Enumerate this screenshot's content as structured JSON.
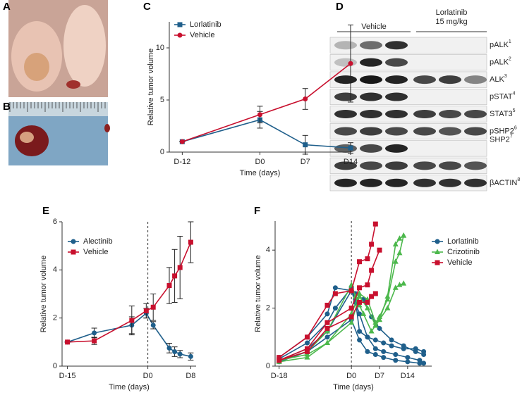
{
  "panel_labels": [
    "A",
    "B",
    "C",
    "D",
    "E",
    "F"
  ],
  "blot": {
    "groups": [
      {
        "lines": [
          "Vehicle"
        ]
      },
      {
        "lines": [
          "Lorlatinib",
          "15 mg/kg"
        ]
      }
    ],
    "rows": [
      {
        "name": "pALK",
        "sup": "1"
      },
      {
        "name": "pALK",
        "sup": "2"
      },
      {
        "name": "ALK",
        "sup": "3"
      },
      {
        "name": "pSTAT",
        "sup": "4"
      },
      {
        "name": "STAT3",
        "sup": "5"
      },
      {
        "name": "pSHP2",
        "sup": "6"
      },
      {
        "name": "SHP2",
        "sup": "7"
      },
      {
        "name": "βACTIN",
        "sup": "8"
      }
    ]
  },
  "chart_data": [
    {
      "type": "line",
      "x_label": "Time (days)",
      "y_label": "Relative tumor volume",
      "x": [
        -12,
        0,
        7,
        14
      ],
      "xlim": [
        -14,
        14
      ],
      "xticks": [
        {
          "value": -12,
          "label": "D-12"
        },
        {
          "value": 0,
          "label": "D0"
        },
        {
          "value": 7,
          "label": "D7"
        },
        {
          "value": 14,
          "label": "D14"
        }
      ],
      "ylim": [
        0,
        12.5
      ],
      "yticks": [
        0,
        5,
        10
      ],
      "series": [
        {
          "name": "Lorlatinib",
          "color": "#1f5f8b",
          "marker": "square",
          "values": [
            1,
            3.1,
            0.7,
            0.4
          ],
          "errors": [
            0,
            0.8,
            0.9,
            0.5
          ]
        },
        {
          "name": "Vehicle",
          "color": "#c8102e",
          "marker": "circle",
          "values": [
            1,
            3.6,
            5.1,
            8.5
          ],
          "errors": [
            0,
            0.8,
            1.0,
            3.7
          ]
        }
      ]
    },
    {
      "type": "line",
      "x_label": "Time (days)",
      "y_label": "Relative tumor volume",
      "x": [
        -15,
        -10,
        -3,
        -0.3,
        1,
        4,
        5,
        6,
        8
      ],
      "xlim": [
        -16,
        9
      ],
      "xticks": [
        {
          "value": -15,
          "label": "D-15"
        },
        {
          "value": 0,
          "label": "D0"
        },
        {
          "value": 8,
          "label": "D8"
        }
      ],
      "ylim": [
        0,
        6
      ],
      "yticks": [
        0,
        2,
        4,
        6
      ],
      "vline": 0,
      "series": [
        {
          "name": "Alectinib",
          "color": "#1f5f8b",
          "marker": "circle",
          "values": [
            1,
            1.38,
            1.7,
            2.2,
            1.7,
            0.75,
            0.6,
            0.5,
            0.4
          ],
          "errors": [
            0,
            0.2,
            0.35,
            0.2,
            0.15,
            0.2,
            0.2,
            0.15,
            0.15
          ]
        },
        {
          "name": "Vehicle",
          "color": "#c8102e",
          "marker": "square",
          "values": [
            1,
            1.05,
            1.9,
            2.3,
            2.45,
            3.35,
            3.75,
            4.1,
            5.15
          ],
          "errors": [
            0,
            0.15,
            0.6,
            0.3,
            0.55,
            0.75,
            1.1,
            1.3,
            0.85
          ]
        }
      ]
    },
    {
      "type": "line",
      "x_label": "Time (days)",
      "y_label": "Relative tumor volume",
      "xlim": [
        -19,
        20
      ],
      "xticks": [
        {
          "value": -18,
          "label": "D-18"
        },
        {
          "value": 0,
          "label": "D0"
        },
        {
          "value": 7,
          "label": "D7"
        },
        {
          "value": 14,
          "label": "D14"
        }
      ],
      "ylim": [
        0,
        5
      ],
      "yticks": [
        0,
        2,
        4
      ],
      "vline": 0,
      "series": [
        {
          "name": "Lorlatinib",
          "color": "#1f5f8b",
          "marker": "circle",
          "lines": [
            {
              "x": [
                -18,
                -11,
                -6,
                -4,
                0,
                1,
                2,
                4,
                6,
                8,
                10,
                13,
                16,
                18
              ],
              "values": [
                0.3,
                1.0,
                1.8,
                2.7,
                2.6,
                2.3,
                1.2,
                1.0,
                0.9,
                0.8,
                0.7,
                0.6,
                0.6,
                0.5
              ]
            },
            {
              "x": [
                -18,
                -11,
                -6,
                -4,
                0,
                1,
                3,
                5,
                7,
                10,
                13,
                16,
                18
              ],
              "values": [
                0.25,
                0.8,
                1.5,
                2.0,
                2.7,
                2.5,
                2.3,
                1.7,
                1.3,
                0.9,
                0.7,
                0.5,
                0.4
              ]
            },
            {
              "x": [
                -18,
                -11,
                -6,
                0,
                1,
                2,
                4,
                6,
                8,
                11,
                14,
                17,
                18
              ],
              "values": [
                0.2,
                0.6,
                1.2,
                2.6,
                2.2,
                1.8,
                1.0,
                0.6,
                0.5,
                0.4,
                0.3,
                0.2,
                0.1
              ]
            },
            {
              "x": [
                -18,
                -11,
                -6,
                0,
                2,
                4,
                6,
                8,
                11,
                14,
                17
              ],
              "values": [
                0.15,
                0.5,
                1.0,
                1.6,
                0.9,
                0.5,
                0.4,
                0.3,
                0.2,
                0.15,
                0.1
              ]
            }
          ]
        },
        {
          "name": "Crizotinib",
          "color": "#4cb84c",
          "marker": "triangle",
          "lines": [
            {
              "x": [
                -18,
                -11,
                -6,
                0,
                1,
                2,
                3,
                5,
                6,
                7,
                9,
                11,
                12,
                13
              ],
              "values": [
                0.2,
                0.5,
                1.2,
                2.8,
                2.4,
                2.1,
                1.8,
                1.2,
                1.4,
                1.6,
                2.4,
                4.2,
                4.4,
                4.5
              ]
            },
            {
              "x": [
                -18,
                -11,
                -6,
                0,
                2,
                4,
                6,
                7,
                9,
                11,
                12,
                13
              ],
              "values": [
                0.2,
                0.4,
                0.8,
                1.8,
                2.5,
                2.3,
                1.5,
                1.7,
                2.3,
                3.6,
                3.9,
                4.5
              ]
            },
            {
              "x": [
                -18,
                -11,
                -6,
                0,
                2,
                4,
                6,
                7,
                9,
                11,
                12,
                13
              ],
              "values": [
                0.15,
                0.3,
                0.8,
                1.5,
                2.4,
                2.0,
                1.4,
                1.6,
                2.0,
                2.7,
                2.8,
                2.85
              ]
            }
          ]
        },
        {
          "name": "Vehicle",
          "color": "#c8102e",
          "marker": "square",
          "lines": [
            {
              "x": [
                -18,
                -11,
                -6,
                -4,
                0,
                2,
                4,
                5,
                6
              ],
              "values": [
                0.3,
                1.0,
                2.1,
                2.5,
                2.6,
                3.6,
                3.7,
                4.2,
                4.9
              ]
            },
            {
              "x": [
                -18,
                -11,
                -6,
                0,
                2,
                4,
                5,
                7
              ],
              "values": [
                0.2,
                0.6,
                1.5,
                2.0,
                2.7,
                2.8,
                3.3,
                4.0
              ]
            },
            {
              "x": [
                -18,
                -11,
                -6,
                0,
                2,
                4,
                5,
                6
              ],
              "values": [
                0.2,
                0.5,
                1.3,
                1.7,
                2.2,
                2.2,
                2.4,
                2.5
              ]
            }
          ]
        }
      ]
    }
  ]
}
